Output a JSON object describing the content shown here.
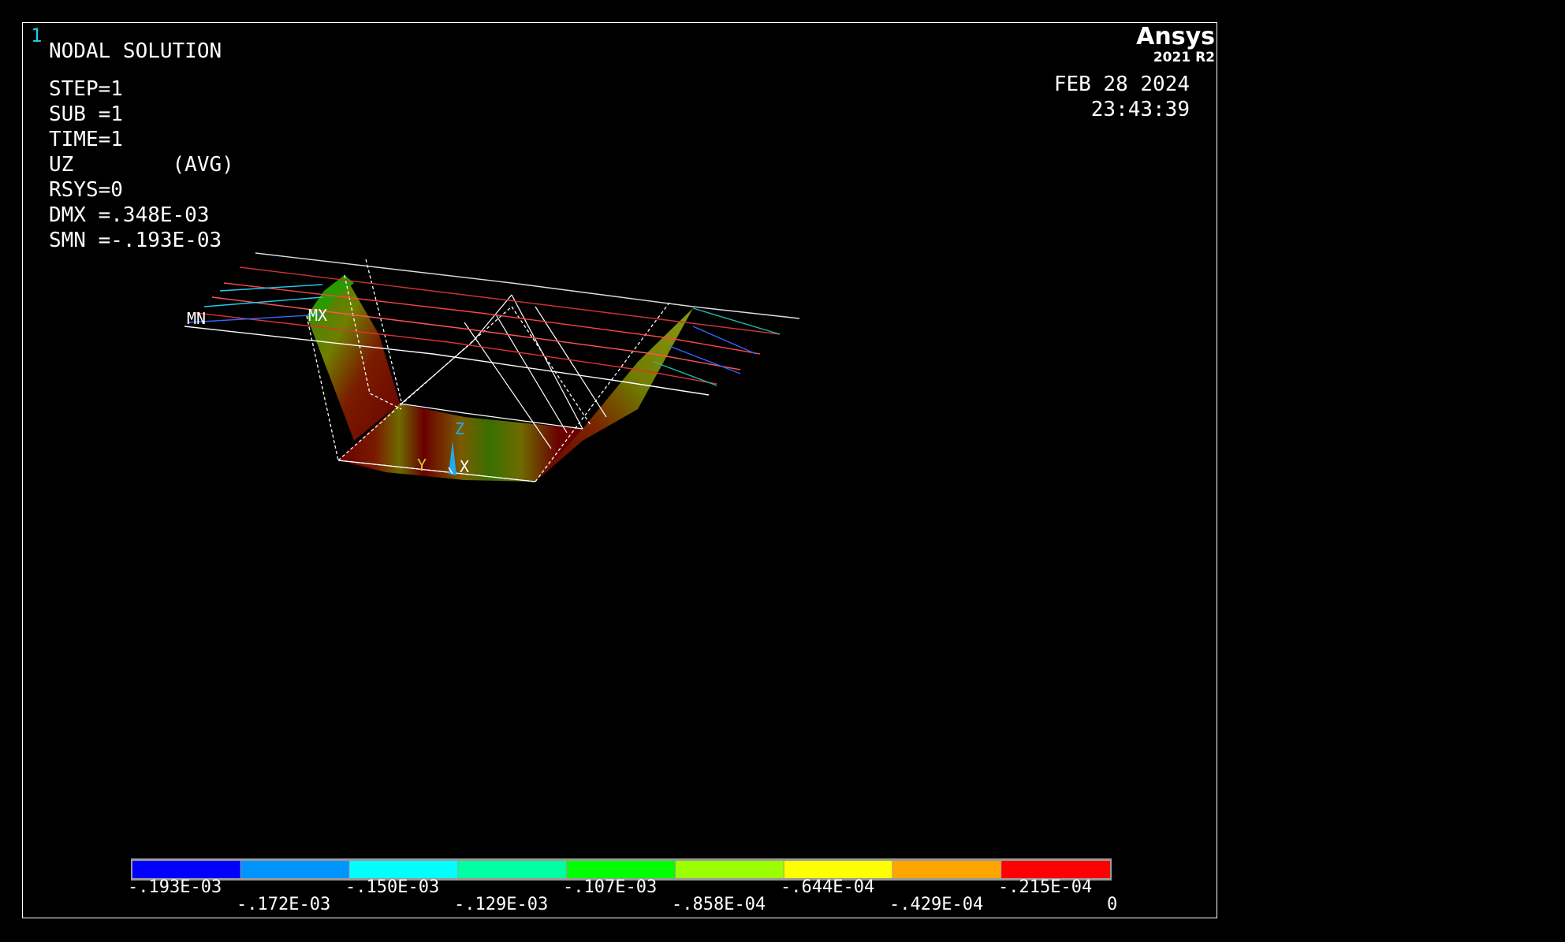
{
  "window": {
    "number": "1"
  },
  "plot": {
    "title": "NODAL SOLUTION",
    "info": [
      "STEP=1",
      "SUB =1",
      "TIME=1",
      "UZ        (AVG)",
      "RSYS=0",
      "DMX =.348E-03",
      "SMN =-.193E-03"
    ],
    "markers": {
      "min": "MN",
      "max": "MX"
    },
    "triad": {
      "x": "X",
      "y": "Y",
      "z": "Z"
    }
  },
  "brand": {
    "name": "Ansys",
    "version": "2021 R2"
  },
  "timestamp": {
    "date": "FEB 28 2024",
    "time": "23:43:39"
  },
  "legend": {
    "colors": [
      "#0000ff",
      "#0094ff",
      "#00ffff",
      "#00ffa0",
      "#00ff00",
      "#9cff00",
      "#ffff00",
      "#ffa500",
      "#ff0000"
    ],
    "labels_top": [
      ".193E-03",
      ".150E-03",
      ".107E-03",
      ".644E-04",
      ".215E-04"
    ],
    "labels_top_signs": [
      "-",
      "-",
      "-",
      "-",
      "-"
    ],
    "labels_bottom": [
      ".172E-03",
      ".129E-03",
      ".858E-04",
      ".429E-04",
      "0"
    ],
    "labels_bottom_signs": [
      "-",
      "-",
      "-",
      "-",
      ""
    ]
  }
}
